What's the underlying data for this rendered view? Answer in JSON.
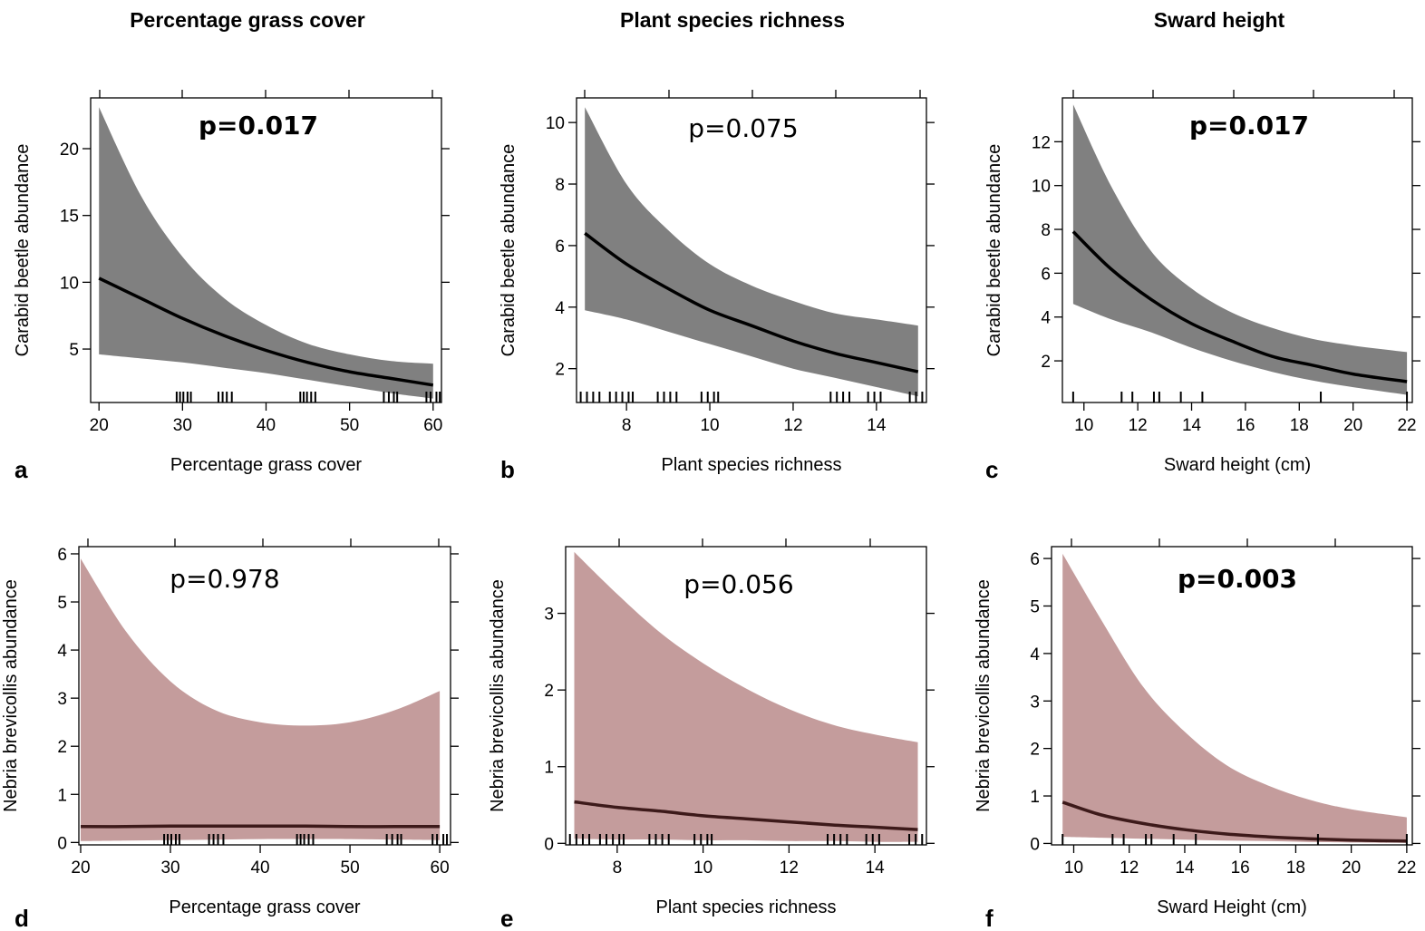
{
  "column_titles": [
    "Percentage grass cover",
    "Plant species richness",
    "Sward height"
  ],
  "colors": {
    "grey_band": "#808080",
    "grey_line": "#000000",
    "rose_band": "#c49c9c",
    "rose_line": "#3d1a1a",
    "rug": "#000000"
  },
  "chart_data": [
    {
      "type": "line",
      "panel": "a",
      "pvalue": "p=0.017",
      "pvalue_bold": true,
      "xlabel": "Percentage grass cover",
      "ylabel": "Carabid beetle abundance",
      "xlim": [
        19,
        61
      ],
      "ylim": [
        1,
        23.8
      ],
      "xticks": [
        20,
        30,
        40,
        50,
        60
      ],
      "yticks": [
        5,
        10,
        15,
        20
      ],
      "x": [
        20,
        25,
        30,
        35,
        40,
        45,
        50,
        55,
        60
      ],
      "fit": [
        10.3,
        8.8,
        7.3,
        6.0,
        4.9,
        4.0,
        3.3,
        2.8,
        2.3
      ],
      "upper": [
        23.1,
        16.5,
        11.9,
        8.8,
        6.8,
        5.4,
        4.6,
        4.1,
        3.9
      ],
      "lower": [
        4.6,
        4.3,
        4.0,
        3.6,
        3.2,
        2.7,
        2.2,
        1.7,
        1.3
      ],
      "rug": [
        29.3,
        29.7,
        30.1,
        30.6,
        31.0,
        34.3,
        34.8,
        35.3,
        35.9,
        44.1,
        44.5,
        44.9,
        45.4,
        45.9,
        54.1,
        54.7,
        55.3,
        55.7,
        59.2,
        59.7,
        60.4,
        60.8
      ]
    },
    {
      "type": "line",
      "panel": "b",
      "pvalue": "p=0.075",
      "pvalue_bold": false,
      "xlabel": "Plant species richness",
      "ylabel": "Carabid beetle abundance",
      "xlim": [
        6.8,
        15.2
      ],
      "ylim": [
        0.9,
        10.8
      ],
      "xticks": [
        8,
        10,
        12,
        14
      ],
      "yticks": [
        2,
        4,
        6,
        8,
        10
      ],
      "x": [
        7,
        8,
        9,
        10,
        11,
        12,
        13,
        14,
        15
      ],
      "fit": [
        6.4,
        5.4,
        4.6,
        3.9,
        3.4,
        2.9,
        2.5,
        2.2,
        1.9
      ],
      "upper": [
        10.5,
        8.0,
        6.5,
        5.4,
        4.7,
        4.2,
        3.8,
        3.6,
        3.4
      ],
      "lower": [
        3.9,
        3.6,
        3.2,
        2.8,
        2.4,
        2.0,
        1.7,
        1.4,
        1.1
      ],
      "rug": [
        6.9,
        7.05,
        7.2,
        7.35,
        7.6,
        7.75,
        7.9,
        8.05,
        8.15,
        8.75,
        8.9,
        9.05,
        9.2,
        9.8,
        9.95,
        10.1,
        10.2,
        12.9,
        13.05,
        13.2,
        13.35,
        13.8,
        13.95,
        14.1,
        14.8,
        14.95,
        15.1
      ]
    },
    {
      "type": "line",
      "panel": "c",
      "pvalue": "p=0.017",
      "pvalue_bold": true,
      "xlabel": "Sward height (cm)",
      "ylabel": "Carabid beetle abundance",
      "xlim": [
        9.2,
        22.2
      ],
      "ylim": [
        0.1,
        14.0
      ],
      "xticks": [
        10,
        12,
        14,
        16,
        18,
        20,
        22
      ],
      "yticks": [
        2,
        4,
        6,
        8,
        10,
        12
      ],
      "x": [
        9.6,
        11,
        12.5,
        14,
        15.5,
        17,
        18.5,
        20,
        22
      ],
      "fit": [
        7.9,
        6.2,
        4.8,
        3.7,
        2.9,
        2.2,
        1.8,
        1.4,
        1.05
      ],
      "upper": [
        13.7,
        10.0,
        7.0,
        5.3,
        4.2,
        3.5,
        3.0,
        2.7,
        2.4
      ],
      "lower": [
        4.6,
        3.9,
        3.3,
        2.6,
        2.0,
        1.5,
        1.1,
        0.8,
        0.45
      ],
      "rug": [
        9.6,
        11.4,
        11.8,
        12.6,
        12.8,
        13.6,
        14.4,
        18.8,
        22.0
      ]
    },
    {
      "type": "line",
      "panel": "d",
      "pvalue": "p=0.978",
      "pvalue_bold": false,
      "xlabel": "Percentage grass cover",
      "ylabel": "Nebria brevicollis abundance",
      "xlim": [
        19.8,
        61.2
      ],
      "ylim": [
        -0.05,
        6.15
      ],
      "xticks": [
        20,
        30,
        40,
        50,
        60
      ],
      "yticks": [
        0,
        1,
        2,
        3,
        4,
        5,
        6
      ],
      "x": [
        20,
        25,
        30,
        35,
        40,
        45,
        50,
        55,
        60
      ],
      "fit": [
        0.33,
        0.33,
        0.34,
        0.34,
        0.34,
        0.34,
        0.33,
        0.33,
        0.33
      ],
      "upper": [
        5.9,
        4.4,
        3.35,
        2.75,
        2.5,
        2.43,
        2.5,
        2.75,
        3.15
      ],
      "lower": [
        0.03,
        0.04,
        0.05,
        0.06,
        0.07,
        0.07,
        0.07,
        0.06,
        0.05
      ],
      "rug": [
        29.3,
        29.7,
        30.1,
        30.6,
        31.0,
        34.3,
        34.8,
        35.3,
        35.9,
        44.1,
        44.5,
        44.9,
        45.4,
        45.9,
        54.1,
        54.7,
        55.3,
        55.7,
        59.2,
        59.7,
        60.4,
        60.8
      ]
    },
    {
      "type": "line",
      "panel": "e",
      "pvalue": "p=0.056",
      "pvalue_bold": false,
      "xlabel": "Plant species richness",
      "ylabel": "Nebria brevicollis abundance",
      "xlim": [
        6.8,
        15.2
      ],
      "ylim": [
        -0.02,
        3.87
      ],
      "xticks": [
        8,
        10,
        12,
        14
      ],
      "yticks": [
        0,
        1,
        2,
        3
      ],
      "x": [
        7,
        8,
        9,
        10,
        11,
        12,
        13,
        14,
        15
      ],
      "fit": [
        0.54,
        0.47,
        0.42,
        0.36,
        0.32,
        0.28,
        0.24,
        0.21,
        0.18
      ],
      "upper": [
        3.8,
        3.25,
        2.75,
        2.35,
        2.02,
        1.75,
        1.55,
        1.42,
        1.32
      ],
      "lower": [
        0.06,
        0.05,
        0.05,
        0.04,
        0.04,
        0.03,
        0.03,
        0.02,
        0.02
      ],
      "rug": [
        6.9,
        7.05,
        7.2,
        7.35,
        7.6,
        7.75,
        7.9,
        8.05,
        8.15,
        8.75,
        8.9,
        9.05,
        9.2,
        9.8,
        9.95,
        10.1,
        10.2,
        12.9,
        13.05,
        13.2,
        13.35,
        13.8,
        13.95,
        14.1,
        14.8,
        14.95,
        15.1
      ]
    },
    {
      "type": "line",
      "panel": "f",
      "pvalue": "p=0.003",
      "pvalue_bold": true,
      "xlabel": "Sward Height (cm)",
      "ylabel": "Nebria brevicollis abundance",
      "xlim": [
        9.2,
        22.2
      ],
      "ylim": [
        -0.03,
        6.25
      ],
      "xticks": [
        10,
        12,
        14,
        16,
        18,
        20,
        22
      ],
      "yticks": [
        0,
        1,
        2,
        3,
        4,
        5,
        6
      ],
      "x": [
        9.6,
        11,
        12.5,
        14,
        15.5,
        17,
        18.5,
        20,
        22
      ],
      "fit": [
        0.87,
        0.6,
        0.42,
        0.29,
        0.2,
        0.14,
        0.1,
        0.07,
        0.05
      ],
      "upper": [
        6.1,
        4.7,
        3.3,
        2.35,
        1.65,
        1.22,
        0.92,
        0.72,
        0.55
      ],
      "lower": [
        0.14,
        0.12,
        0.1,
        0.08,
        0.06,
        0.05,
        0.03,
        0.02,
        0.01
      ],
      "rug": [
        9.6,
        11.4,
        11.8,
        12.6,
        12.8,
        13.6,
        14.4,
        18.8,
        22.0
      ]
    }
  ]
}
